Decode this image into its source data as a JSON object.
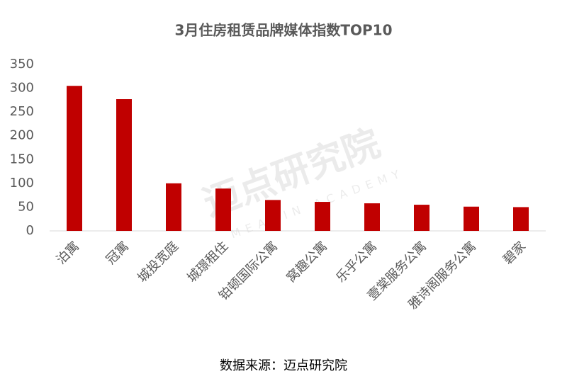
{
  "chart_data": {
    "type": "bar",
    "title": "3月住房租赁品牌媒体指数TOP10",
    "categories": [
      "泊寓",
      "冠寓",
      "城投宽庭",
      "城璟租住",
      "铂顿国际公寓",
      "窝趣公寓",
      "乐乎公寓",
      "壹棠服务公寓",
      "雅诗阁服务公寓",
      "碧家"
    ],
    "values": [
      305,
      277,
      100,
      89,
      65,
      61,
      58,
      55,
      51,
      50
    ],
    "color": "#c00000",
    "ylim": [
      0,
      350
    ],
    "yticks": [
      0,
      50,
      100,
      150,
      200,
      250,
      300,
      350
    ],
    "grid": false,
    "source": "数据来源：迈点研究院",
    "watermark": {
      "text": "迈点研究院",
      "subtext": "MEADIN ACADEMY"
    }
  }
}
